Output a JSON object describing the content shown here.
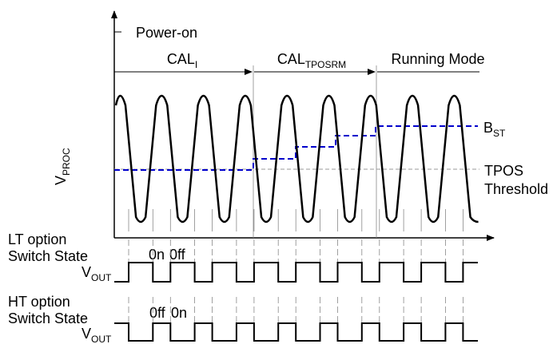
{
  "power_on": "Power-on",
  "phases": [
    {
      "main": "CAL",
      "sub": "I"
    },
    {
      "main": "CAL",
      "sub": "TPOSRM"
    },
    {
      "main": "Running Mode"
    }
  ],
  "signal": {
    "y_label": {
      "main": "V",
      "sub": "PROC"
    },
    "b_st": {
      "main": "B",
      "sub": "ST"
    },
    "threshold": [
      "TPOS",
      "Threshold"
    ]
  },
  "lt_option": {
    "label": [
      "LT option",
      "Switch State"
    ],
    "output": {
      "main": "V",
      "sub": "OUT"
    },
    "states": [
      "0n",
      "0ff"
    ]
  },
  "ht_option": {
    "label": [
      "HT option",
      "Switch State"
    ],
    "output": {
      "main": "V",
      "sub": "OUT"
    },
    "states": [
      "0ff",
      "0n"
    ]
  }
}
